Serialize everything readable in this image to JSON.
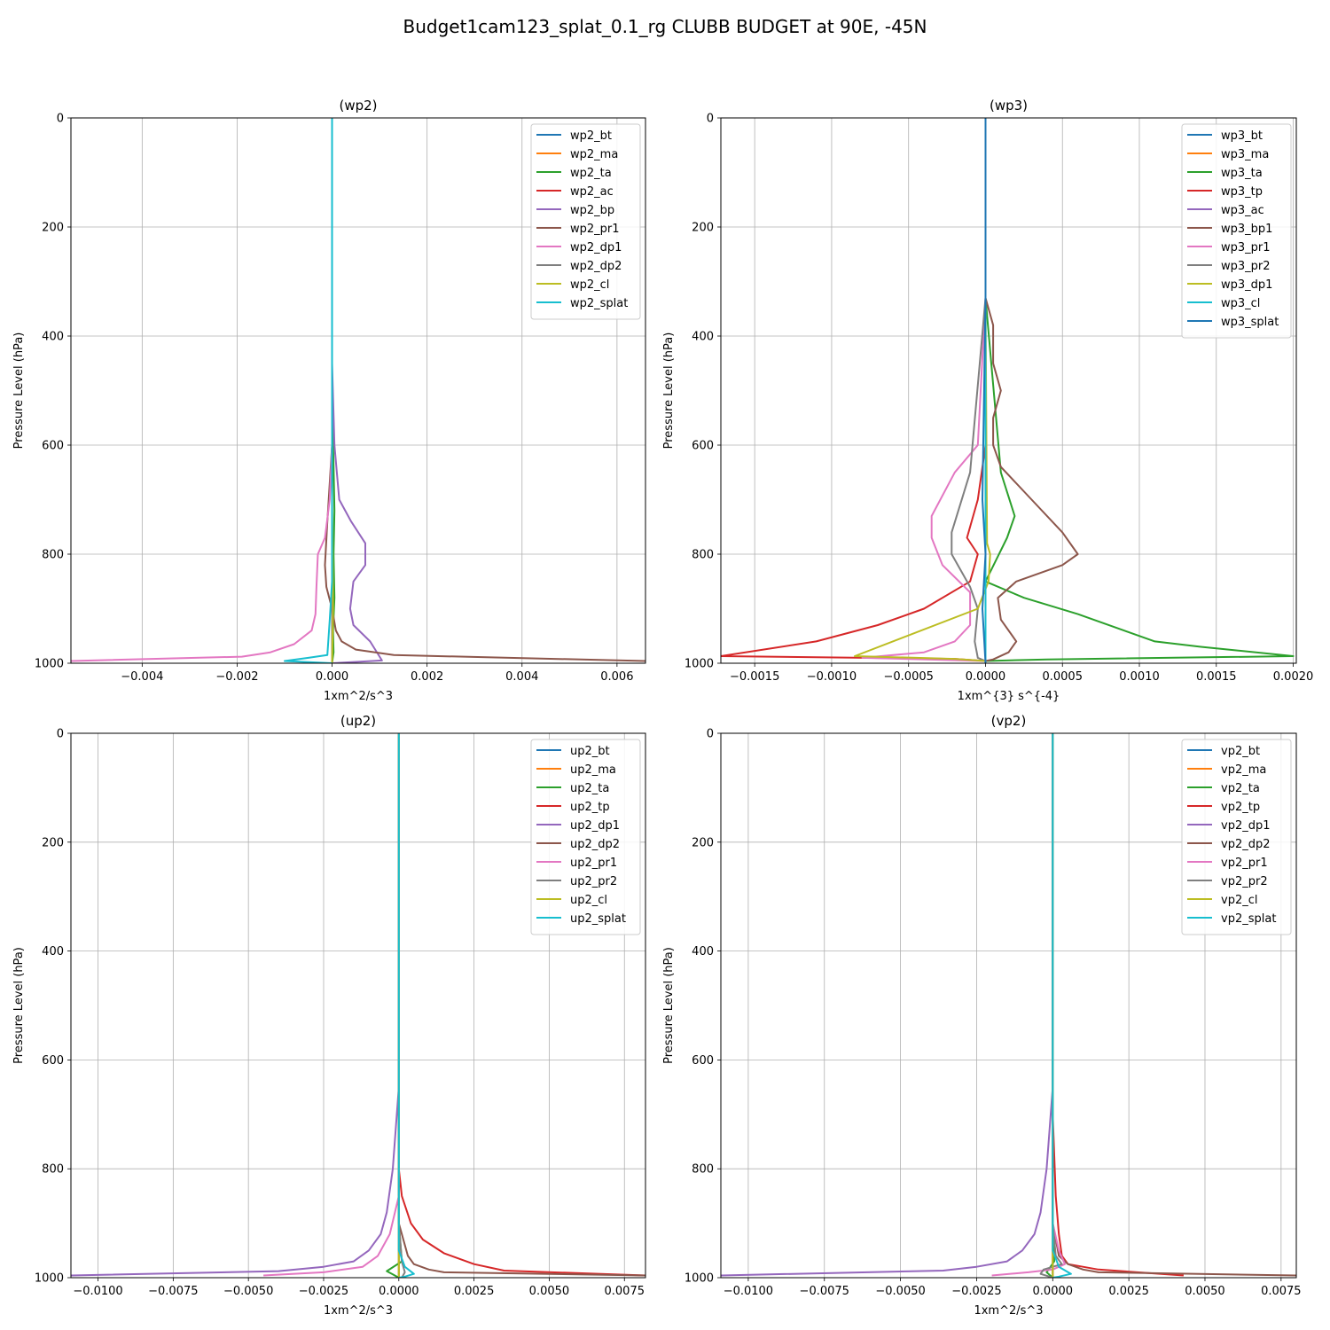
{
  "figure": {
    "title": "Budget1cam123_splat_0.1_rg CLUBB BUDGET at 90E, -45N"
  },
  "colors": [
    "#1f77b4",
    "#ff7f0e",
    "#2ca02c",
    "#d62728",
    "#9467bd",
    "#8c564b",
    "#e377c2",
    "#7f7f7f",
    "#bcbd22",
    "#17becf",
    "#1f77b4"
  ],
  "chart_data": [
    {
      "type": "line",
      "title": "(wp2)",
      "xlabel": "1xm^2/s^3",
      "ylabel": "Pressure Level (hPa)",
      "xlim": [
        -0.0055,
        0.0066
      ],
      "ylim": [
        1000,
        0
      ],
      "xticks": [
        -0.004,
        -0.002,
        0.0,
        0.002,
        0.004,
        0.006
      ],
      "xtick_labels": [
        "−0.004",
        "−0.002",
        "0.000",
        "0.002",
        "0.004",
        "0.006"
      ],
      "yticks": [
        0,
        200,
        400,
        600,
        800,
        1000
      ],
      "grid": true,
      "legend": "top-right",
      "series": [
        {
          "name": "wp2_bt",
          "x": [
            0,
            0,
            0
          ],
          "y": [
            0,
            950,
            1000
          ]
        },
        {
          "name": "wp2_ma",
          "x": [
            0,
            0,
            0
          ],
          "y": [
            0,
            950,
            1000
          ]
        },
        {
          "name": "wp2_ta",
          "x": [
            0,
            0,
            5e-05,
            3e-05,
            5e-05,
            2e-05,
            3e-05,
            0
          ],
          "y": [
            0,
            500,
            720,
            800,
            880,
            940,
            980,
            1000
          ]
        },
        {
          "name": "wp2_ac",
          "x": [
            0,
            0,
            0,
            0
          ],
          "y": [
            0,
            900,
            980,
            1000
          ]
        },
        {
          "name": "wp2_bp",
          "x": [
            0,
            0,
            5e-05,
            0.00015,
            0.0004,
            0.0007,
            0.0007,
            0.00045,
            0.00038,
            0.00045,
            0.0008,
            0.00105,
            0.0
          ],
          "y": [
            0,
            450,
            600,
            700,
            740,
            780,
            820,
            850,
            900,
            930,
            960,
            995,
            1000
          ]
        },
        {
          "name": "wp2_pr1",
          "x": [
            0,
            0,
            -0.0001,
            -0.00015,
            -0.00012,
            0.0,
            8e-05,
            0.0002,
            0.0005,
            0.0013,
            0.0066
          ],
          "y": [
            0,
            600,
            740,
            820,
            860,
            900,
            940,
            960,
            975,
            985,
            996
          ]
        },
        {
          "name": "wp2_dp1",
          "x": [
            0,
            0,
            -5e-05,
            -0.00015,
            -0.0003,
            -0.00033,
            -0.00035,
            -0.00043,
            -0.0008,
            -0.0013,
            -0.0019,
            -0.0055
          ],
          "y": [
            0,
            600,
            700,
            770,
            800,
            860,
            910,
            940,
            965,
            980,
            988,
            996
          ]
        },
        {
          "name": "wp2_dp2",
          "x": [
            0,
            0,
            0,
            0,
            0
          ],
          "y": [
            0,
            600,
            900,
            980,
            1000
          ]
        },
        {
          "name": "wp2_cl",
          "x": [
            0,
            0,
            2e-05,
            0.0
          ],
          "y": [
            0,
            700,
            900,
            1000
          ]
        },
        {
          "name": "wp2_splat",
          "x": [
            0,
            0,
            -5e-05,
            -0.0001,
            -0.0005,
            -0.001,
            -0.0005,
            0.0
          ],
          "y": [
            0,
            850,
            920,
            985,
            990,
            996,
            998,
            1000
          ]
        }
      ]
    },
    {
      "type": "line",
      "title": "(wp3)",
      "xlabel": "1xm^{3} s^{-4}",
      "ylabel": "Pressure Level (hPa)",
      "xlim": [
        -0.00172,
        0.00202
      ],
      "ylim": [
        1000,
        0
      ],
      "xticks": [
        -0.0015,
        -0.001,
        -0.0005,
        0.0,
        0.0005,
        0.001,
        0.0015,
        0.002
      ],
      "xtick_labels": [
        "−0.0015",
        "−0.0010",
        "−0.0005",
        "0.0000",
        "0.0005",
        "0.0010",
        "0.0015",
        "0.0020"
      ],
      "yticks": [
        0,
        200,
        400,
        600,
        800,
        1000
      ],
      "grid": true,
      "legend": "top-right",
      "series": [
        {
          "name": "wp3_bt",
          "x": [
            0,
            0,
            0
          ],
          "y": [
            0,
            950,
            1000
          ]
        },
        {
          "name": "wp3_ma",
          "x": [
            0,
            0,
            0
          ],
          "y": [
            0,
            950,
            1000
          ]
        },
        {
          "name": "wp3_ta",
          "x": [
            0,
            0,
            0.0001,
            0.00019,
            0.00014,
            0.0,
            0.00025,
            0.0006,
            0.0009,
            0.0011,
            0.0014,
            0.002,
            0.0004,
            0.0
          ],
          "y": [
            0,
            330,
            650,
            730,
            770,
            850,
            880,
            910,
            940,
            960,
            970,
            987,
            993,
            996
          ]
        },
        {
          "name": "wp3_tp",
          "x": [
            0,
            0,
            -5e-05,
            -0.00012,
            -5e-05,
            -0.0001,
            -0.0004,
            -0.0007,
            -0.0011,
            -0.00172,
            -0.0002,
            0.0
          ],
          "y": [
            0,
            600,
            700,
            770,
            800,
            850,
            900,
            930,
            960,
            987,
            992,
            996
          ]
        },
        {
          "name": "wp3_ac",
          "x": [
            0,
            0,
            0
          ],
          "y": [
            0,
            900,
            1000
          ]
        },
        {
          "name": "wp3_bp1",
          "x": [
            0,
            0,
            5e-05,
            5e-05,
            0.0001,
            5e-05,
            5e-05,
            0.0001,
            0.0003,
            0.0005,
            0.0006,
            0.0005,
            0.0002,
            8e-05,
            0.0001,
            0.0002,
            0.00015,
            5e-05,
            0.0
          ],
          "y": [
            0,
            330,
            380,
            450,
            500,
            550,
            600,
            640,
            700,
            760,
            800,
            820,
            850,
            880,
            920,
            960,
            980,
            993,
            996
          ]
        },
        {
          "name": "wp3_pr1",
          "x": [
            0,
            0,
            -5e-05,
            -0.0002,
            -0.00035,
            -0.00035,
            -0.00028,
            -0.0001,
            -0.0001,
            -0.0002,
            -0.0004,
            -0.0008,
            0.0
          ],
          "y": [
            0,
            330,
            600,
            650,
            730,
            770,
            820,
            870,
            930,
            960,
            980,
            990,
            996
          ]
        },
        {
          "name": "wp3_pr2",
          "x": [
            0,
            0,
            -0.0001,
            -0.00022,
            -0.00022,
            -0.0001,
            -5e-05,
            -7e-05,
            -5e-05,
            0.0
          ],
          "y": [
            0,
            330,
            650,
            760,
            800,
            860,
            900,
            960,
            990,
            996
          ]
        },
        {
          "name": "wp3_dp1",
          "x": [
            0,
            0,
            1e-05,
            3e-05,
            2e-05,
            -5e-05,
            -0.00085,
            -0.0002,
            0.0
          ],
          "y": [
            0,
            330,
            780,
            800,
            850,
            900,
            987,
            992,
            996
          ]
        },
        {
          "name": "wp3_cl",
          "x": [
            0,
            0,
            0
          ],
          "y": [
            0,
            900,
            1000
          ]
        },
        {
          "name": "wp3_splat",
          "x": [
            0,
            0,
            -2e-05,
            0.0,
            -2e-05,
            0.0
          ],
          "y": [
            0,
            330,
            700,
            800,
            900,
            1000
          ]
        }
      ]
    },
    {
      "type": "line",
      "title": "(up2)",
      "xlabel": "1xm^2/s^3",
      "ylabel": "Pressure Level (hPa)",
      "xlim": [
        -0.0109,
        0.0082
      ],
      "ylim": [
        1000,
        0
      ],
      "xticks": [
        -0.01,
        -0.0075,
        -0.005,
        -0.0025,
        0.0,
        0.0025,
        0.005,
        0.0075
      ],
      "xtick_labels": [
        "−0.0100",
        "−0.0075",
        "−0.0050",
        "−0.0025",
        "0.0000",
        "0.0025",
        "0.0050",
        "0.0075"
      ],
      "yticks": [
        0,
        200,
        400,
        600,
        800,
        1000
      ],
      "grid": true,
      "legend": "top-right",
      "series": [
        {
          "name": "up2_bt",
          "x": [
            0,
            0,
            0
          ],
          "y": [
            0,
            950,
            1000
          ]
        },
        {
          "name": "up2_ma",
          "x": [
            0,
            0,
            0
          ],
          "y": [
            0,
            950,
            1000
          ]
        },
        {
          "name": "up2_ta",
          "x": [
            0,
            0,
            0.0001,
            -0.0004,
            -0.0002,
            0.0
          ],
          "y": [
            0,
            900,
            970,
            988,
            994,
            1000
          ]
        },
        {
          "name": "up2_tp",
          "x": [
            0,
            0,
            0.0001,
            0.0004,
            0.0008,
            0.0015,
            0.0025,
            0.0035,
            0.0082
          ],
          "y": [
            0,
            800,
            850,
            900,
            930,
            955,
            975,
            987,
            996
          ]
        },
        {
          "name": "up2_dp1",
          "x": [
            0,
            0,
            -0.0002,
            -0.0004,
            -0.0006,
            -0.001,
            -0.0015,
            -0.0025,
            -0.004,
            -0.0109
          ],
          "y": [
            0,
            650,
            800,
            880,
            920,
            950,
            970,
            980,
            988,
            996
          ]
        },
        {
          "name": "up2_dp2",
          "x": [
            0,
            0,
            0.0003,
            0.0005,
            0.001,
            0.0015,
            0.0082
          ],
          "y": [
            0,
            900,
            960,
            975,
            985,
            990,
            996
          ]
        },
        {
          "name": "up2_pr1",
          "x": [
            0,
            0,
            -0.0003,
            -0.0007,
            -0.0012,
            -0.0025,
            -0.0045
          ],
          "y": [
            0,
            850,
            920,
            960,
            980,
            990,
            996
          ]
        },
        {
          "name": "up2_pr2",
          "x": [
            0,
            0,
            0.0001,
            0.0002,
            0.0001
          ],
          "y": [
            0,
            900,
            970,
            990,
            1000
          ]
        },
        {
          "name": "up2_cl",
          "x": [
            0,
            0,
            0
          ],
          "y": [
            0,
            900,
            1000
          ]
        },
        {
          "name": "up2_splat",
          "x": [
            0,
            0,
            0.0002,
            0.0005,
            0.0002,
            0.0
          ],
          "y": [
            0,
            950,
            980,
            993,
            998,
            1000
          ]
        }
      ]
    },
    {
      "type": "line",
      "title": "(vp2)",
      "xlabel": "1xm^2/s^3",
      "ylabel": "Pressure Level (hPa)",
      "xlim": [
        -0.0109,
        0.008
      ],
      "ylim": [
        1000,
        0
      ],
      "xticks": [
        -0.01,
        -0.0075,
        -0.005,
        -0.0025,
        0.0,
        0.0025,
        0.005,
        0.0075
      ],
      "xtick_labels": [
        "−0.0100",
        "−0.0075",
        "−0.0050",
        "−0.0025",
        "0.0000",
        "0.0025",
        "0.0050",
        "0.0075"
      ],
      "yticks": [
        0,
        200,
        400,
        600,
        800,
        1000
      ],
      "grid": true,
      "legend": "top-right",
      "series": [
        {
          "name": "vp2_bt",
          "x": [
            0,
            0,
            0
          ],
          "y": [
            0,
            950,
            1000
          ]
        },
        {
          "name": "vp2_ma",
          "x": [
            0,
            0,
            0
          ],
          "y": [
            0,
            950,
            1000
          ]
        },
        {
          "name": "vp2_ta",
          "x": [
            0,
            0,
            5e-05,
            -0.0002,
            0.0
          ],
          "y": [
            0,
            900,
            970,
            990,
            1000
          ]
        },
        {
          "name": "vp2_tp",
          "x": [
            0,
            0,
            0.0001,
            0.0002,
            0.0003,
            0.0005,
            0.0015,
            0.0043
          ],
          "y": [
            0,
            700,
            850,
            920,
            960,
            975,
            985,
            996
          ]
        },
        {
          "name": "vp2_dp1",
          "x": [
            0,
            0,
            -0.0002,
            -0.0004,
            -0.0006,
            -0.001,
            -0.0015,
            -0.0025,
            -0.0036,
            -0.0109
          ],
          "y": [
            0,
            650,
            800,
            880,
            920,
            950,
            970,
            980,
            987,
            996
          ]
        },
        {
          "name": "vp2_dp2",
          "x": [
            0,
            0,
            0.0002,
            0.0005,
            0.001,
            0.0015,
            0.008
          ],
          "y": [
            0,
            900,
            960,
            975,
            985,
            990,
            996
          ]
        },
        {
          "name": "vp2_pr1",
          "x": [
            0,
            0,
            0.0002,
            0.0004,
            0.0,
            -0.0008,
            -0.002
          ],
          "y": [
            0,
            900,
            950,
            975,
            985,
            990,
            996
          ]
        },
        {
          "name": "vp2_pr2",
          "x": [
            0,
            0,
            0.0001,
            0.0003,
            -0.0003,
            -0.0004,
            0.0
          ],
          "y": [
            0,
            900,
            960,
            975,
            985,
            993,
            1000
          ]
        },
        {
          "name": "vp2_cl",
          "x": [
            0,
            0,
            0
          ],
          "y": [
            0,
            900,
            1000
          ]
        },
        {
          "name": "vp2_splat",
          "x": [
            0,
            0,
            0.0002,
            0.0006,
            0.0002,
            0.0
          ],
          "y": [
            0,
            950,
            980,
            993,
            998,
            1000
          ]
        }
      ]
    }
  ]
}
